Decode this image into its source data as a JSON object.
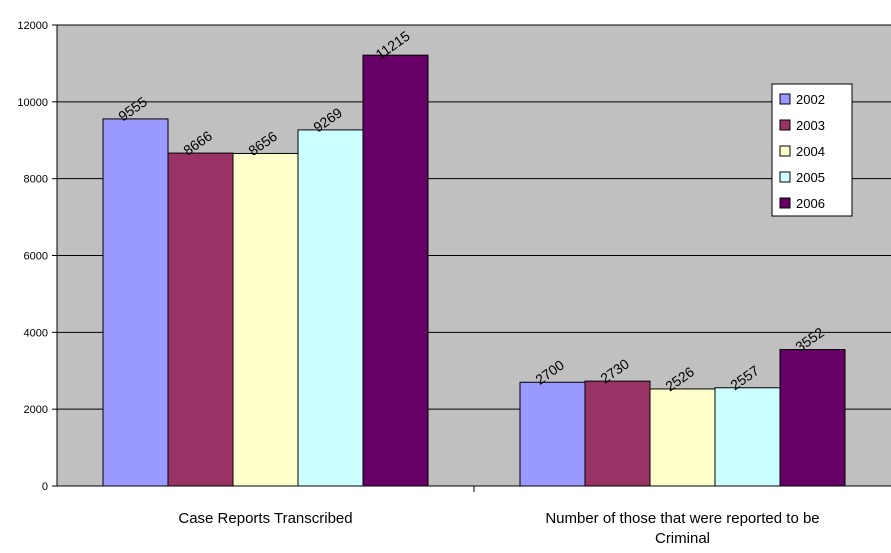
{
  "chart_data": {
    "type": "bar",
    "categories": [
      [
        "Case Reports Transcribed"
      ],
      [
        "Number of those that were reported to be",
        "Criminal"
      ]
    ],
    "series": [
      {
        "name": "2002",
        "values": [
          9555,
          2700
        ],
        "color": "#9999ff"
      },
      {
        "name": "2003",
        "values": [
          8666,
          2730
        ],
        "color": "#993366"
      },
      {
        "name": "2004",
        "values": [
          8656,
          2526
        ],
        "color": "#ffffcc"
      },
      {
        "name": "2005",
        "values": [
          9269,
          2557
        ],
        "color": "#ccffff"
      },
      {
        "name": "2006",
        "values": [
          11215,
          3552
        ],
        "color": "#660066"
      }
    ],
    "ylim": [
      0,
      12000
    ],
    "yticks": [
      0,
      2000,
      4000,
      6000,
      8000,
      10000,
      12000
    ],
    "grid": true,
    "plot_background": "#c0c0c0",
    "legend_position": "right"
  }
}
